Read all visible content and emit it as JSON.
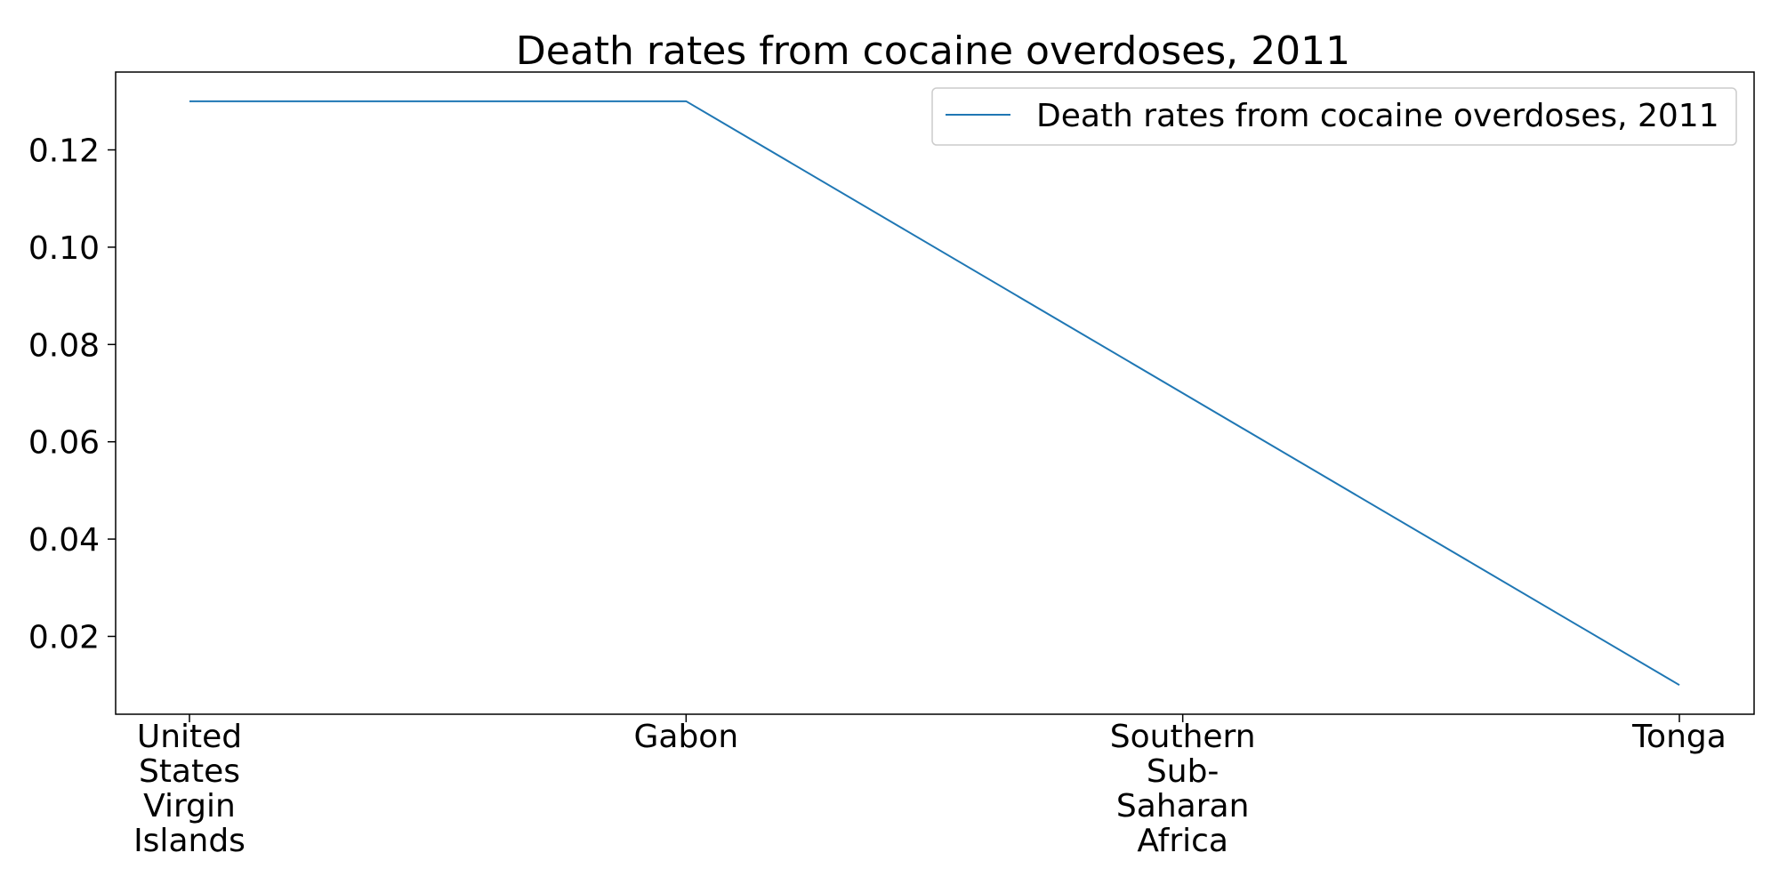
{
  "chart_data": {
    "type": "line",
    "title": "Death rates from cocaine overdoses, 2011",
    "xlabel": "",
    "ylabel": "",
    "categories": [
      [
        "United",
        "States",
        "Virgin",
        "Islands"
      ],
      [
        "Gabon"
      ],
      [
        "Southern",
        "Sub-",
        "Saharan",
        "Africa"
      ],
      [
        "Tonga"
      ]
    ],
    "series": [
      {
        "name": "Death rates from cocaine overdoses, 2011",
        "values": [
          0.13,
          0.13,
          0.07,
          0.01
        ],
        "color": "#1f77b4"
      }
    ],
    "ylim": [
      0.004,
      0.136
    ],
    "yticks": [
      0.02,
      0.04,
      0.06,
      0.08,
      0.1,
      0.12
    ],
    "ytick_labels": [
      "0.02",
      "0.04",
      "0.06",
      "0.08",
      "0.10",
      "0.12"
    ],
    "grid": false,
    "legend_position": "top-right"
  }
}
